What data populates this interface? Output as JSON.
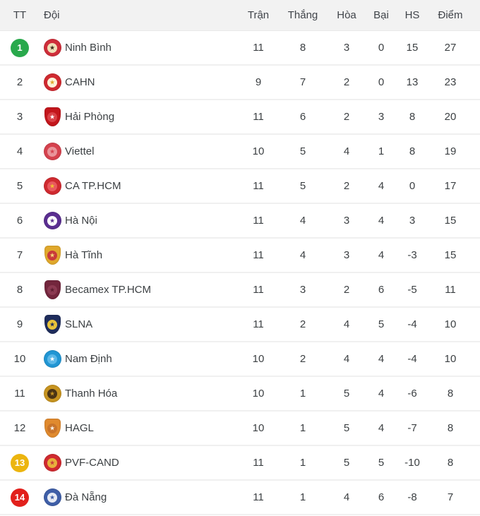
{
  "table": {
    "columns": [
      {
        "key": "pos",
        "label": "TT"
      },
      {
        "key": "team",
        "label": "Đội"
      },
      {
        "key": "played",
        "label": "Trận"
      },
      {
        "key": "won",
        "label": "Thắng"
      },
      {
        "key": "drawn",
        "label": "Hòa"
      },
      {
        "key": "lost",
        "label": "Bại"
      },
      {
        "key": "gd",
        "label": "HS"
      },
      {
        "key": "points",
        "label": "Điểm"
      }
    ],
    "rows": [
      {
        "pos": "1",
        "badge": "green",
        "team": "Ninh Bình",
        "played": "11",
        "won": "8",
        "drawn": "3",
        "lost": "0",
        "gd": "15",
        "points": "27",
        "logo": {
          "shape": "circle",
          "outer": "#cf2e3a",
          "inner": "#efe0b8",
          "detail": "#3a2a1a"
        }
      },
      {
        "pos": "2",
        "badge": null,
        "team": "CAHN",
        "played": "9",
        "won": "7",
        "drawn": "2",
        "lost": "0",
        "gd": "13",
        "points": "23",
        "logo": {
          "shape": "circle",
          "outer": "#d02a30",
          "inner": "#fdf3d9",
          "detail": "#e0a62a"
        }
      },
      {
        "pos": "3",
        "badge": null,
        "team": "Hải Phòng",
        "played": "11",
        "won": "6",
        "drawn": "2",
        "lost": "3",
        "gd": "8",
        "points": "20",
        "logo": {
          "shape": "shield",
          "outer": "#c3161c",
          "inner": "#d94046",
          "detail": "#ffffff"
        }
      },
      {
        "pos": "4",
        "badge": null,
        "team": "Viettel",
        "played": "10",
        "won": "5",
        "drawn": "4",
        "lost": "1",
        "gd": "8",
        "points": "19",
        "logo": {
          "shape": "circle",
          "outer": "#d6424e",
          "inner": "#e9959b",
          "detail": "#d6424e"
        }
      },
      {
        "pos": "5",
        "badge": null,
        "team": "CA TP.HCM",
        "played": "11",
        "won": "5",
        "drawn": "2",
        "lost": "4",
        "gd": "0",
        "points": "17",
        "logo": {
          "shape": "circle",
          "outer": "#d02a30",
          "inner": "#e8595e",
          "detail": "#f2c230"
        }
      },
      {
        "pos": "6",
        "badge": null,
        "team": "Hà Nội",
        "played": "11",
        "won": "4",
        "drawn": "3",
        "lost": "4",
        "gd": "3",
        "points": "15",
        "logo": {
          "shape": "circle",
          "outer": "#5b2f91",
          "inner": "#ffffff",
          "detail": "#5b2f91"
        }
      },
      {
        "pos": "7",
        "badge": null,
        "team": "Hà Tĩnh",
        "played": "11",
        "won": "4",
        "drawn": "3",
        "lost": "4",
        "gd": "-3",
        "points": "15",
        "logo": {
          "shape": "shield",
          "outer": "#e0a82c",
          "inner": "#c93a3a",
          "detail": "#f5d87a"
        }
      },
      {
        "pos": "8",
        "badge": null,
        "team": "Becamex TP.HCM",
        "played": "11",
        "won": "3",
        "drawn": "2",
        "lost": "6",
        "gd": "-5",
        "points": "11",
        "logo": {
          "shape": "shield",
          "outer": "#73263d",
          "inner": "#8c3a52",
          "detail": "#5d1e31"
        }
      },
      {
        "pos": "9",
        "badge": null,
        "team": "SLNA",
        "played": "11",
        "won": "2",
        "drawn": "4",
        "lost": "5",
        "gd": "-4",
        "points": "10",
        "logo": {
          "shape": "shield",
          "outer": "#1f2d5c",
          "inner": "#e8c33a",
          "detail": "#1f2d5c"
        }
      },
      {
        "pos": "10",
        "badge": null,
        "team": "Nam Định",
        "played": "10",
        "won": "2",
        "drawn": "4",
        "lost": "4",
        "gd": "-4",
        "points": "10",
        "logo": {
          "shape": "circle",
          "outer": "#2196d4",
          "inner": "#5cb8e8",
          "detail": "#ffffff"
        }
      },
      {
        "pos": "11",
        "badge": null,
        "team": "Thanh Hóa",
        "played": "10",
        "won": "1",
        "drawn": "5",
        "lost": "4",
        "gd": "-6",
        "points": "8",
        "logo": {
          "shape": "circle",
          "outer": "#c79420",
          "inner": "#4a3415",
          "detail": "#c79420"
        }
      },
      {
        "pos": "12",
        "badge": null,
        "team": "HAGL",
        "played": "10",
        "won": "1",
        "drawn": "5",
        "lost": "4",
        "gd": "-7",
        "points": "8",
        "logo": {
          "shape": "shield",
          "outer": "#e08a2e",
          "inner": "#c9742a",
          "detail": "#f7f3ea"
        }
      },
      {
        "pos": "13",
        "badge": "yellow",
        "team": "PVF-CAND",
        "played": "11",
        "won": "1",
        "drawn": "5",
        "lost": "5",
        "gd": "-10",
        "points": "8",
        "logo": {
          "shape": "circle",
          "outer": "#d02a30",
          "inner": "#e8b13c",
          "detail": "#c93a3a"
        }
      },
      {
        "pos": "14",
        "badge": "red",
        "team": "Đà Nẵng",
        "played": "11",
        "won": "1",
        "drawn": "4",
        "lost": "6",
        "gd": "-8",
        "points": "7",
        "logo": {
          "shape": "circle",
          "outer": "#3f5fa8",
          "inner": "#e8ecf5",
          "detail": "#3f5fa8"
        }
      }
    ]
  },
  "palette": {
    "green": "#29a94c",
    "yellow": "#ecb50f",
    "red": "#e2201c"
  }
}
